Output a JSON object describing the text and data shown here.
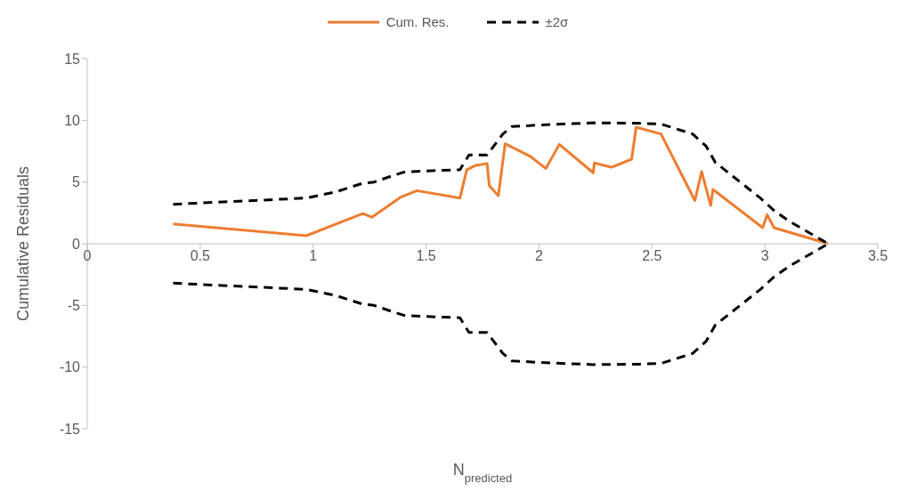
{
  "chart_data": {
    "type": "line",
    "xlabel": "N$_{predicted}$",
    "ylabel": "Cumulative Residuals",
    "xlim": [
      0,
      3.5
    ],
    "xticks": [
      0,
      0.5,
      1,
      1.5,
      2,
      2.5,
      3,
      3.5
    ],
    "ylim": [
      -15,
      15
    ],
    "yticks": [
      -15,
      -10,
      -5,
      0,
      5,
      10,
      15
    ],
    "grid": false,
    "legend": "top",
    "marker": "none",
    "series": [
      {
        "name": "Cum. Res.",
        "color": "#ed7d31",
        "line_style": "solid",
        "x": [
          0.38,
          0.97,
          1.22,
          1.26,
          1.39,
          1.46,
          1.65,
          1.68,
          1.72,
          1.77,
          1.78,
          1.82,
          1.85,
          1.96,
          2.03,
          2.09,
          2.24,
          2.245,
          2.32,
          2.41,
          2.43,
          2.54,
          2.69,
          2.72,
          2.76,
          2.77,
          2.99,
          3.01,
          3.04,
          3.28
        ],
        "values": [
          1.6,
          0.65,
          2.45,
          2.15,
          3.8,
          4.3,
          3.7,
          6.0,
          6.35,
          6.5,
          4.7,
          3.9,
          8.1,
          7.1,
          6.1,
          8.05,
          5.75,
          6.55,
          6.2,
          6.85,
          9.45,
          8.9,
          3.5,
          5.85,
          3.1,
          4.4,
          1.3,
          2.35,
          1.3,
          0
        ]
      },
      {
        "name": "±2σ",
        "color": "#000000",
        "line_style": "dashed",
        "x": [
          0.38,
          0.97,
          1.1,
          1.22,
          1.27,
          1.35,
          1.4,
          1.5,
          1.65,
          1.69,
          1.77,
          1.84,
          1.88,
          2.03,
          2.24,
          2.44,
          2.54,
          2.68,
          2.74,
          2.78,
          2.98,
          3.04,
          3.11,
          3.28
        ],
        "values": [
          3.2,
          3.7,
          4.2,
          4.9,
          5.0,
          5.5,
          5.8,
          5.9,
          6.0,
          7.2,
          7.2,
          8.9,
          9.5,
          9.65,
          9.8,
          9.77,
          9.7,
          8.9,
          7.9,
          6.6,
          3.7,
          2.7,
          1.8,
          0
        ]
      },
      {
        "color": "#000000",
        "line_style": "dashed",
        "x": [
          0.38,
          0.97,
          1.1,
          1.22,
          1.27,
          1.35,
          1.4,
          1.5,
          1.65,
          1.69,
          1.77,
          1.84,
          1.88,
          2.03,
          2.24,
          2.44,
          2.54,
          2.68,
          2.74,
          2.78,
          2.98,
          3.04,
          3.11,
          3.28
        ],
        "values": [
          -3.2,
          -3.7,
          -4.2,
          -4.9,
          -5.0,
          -5.5,
          -5.8,
          -5.9,
          -6.0,
          -7.2,
          -7.2,
          -8.9,
          -9.5,
          -9.65,
          -9.8,
          -9.77,
          -9.7,
          -8.9,
          -7.9,
          -6.6,
          -3.7,
          -2.7,
          -1.8,
          0
        ]
      }
    ]
  }
}
